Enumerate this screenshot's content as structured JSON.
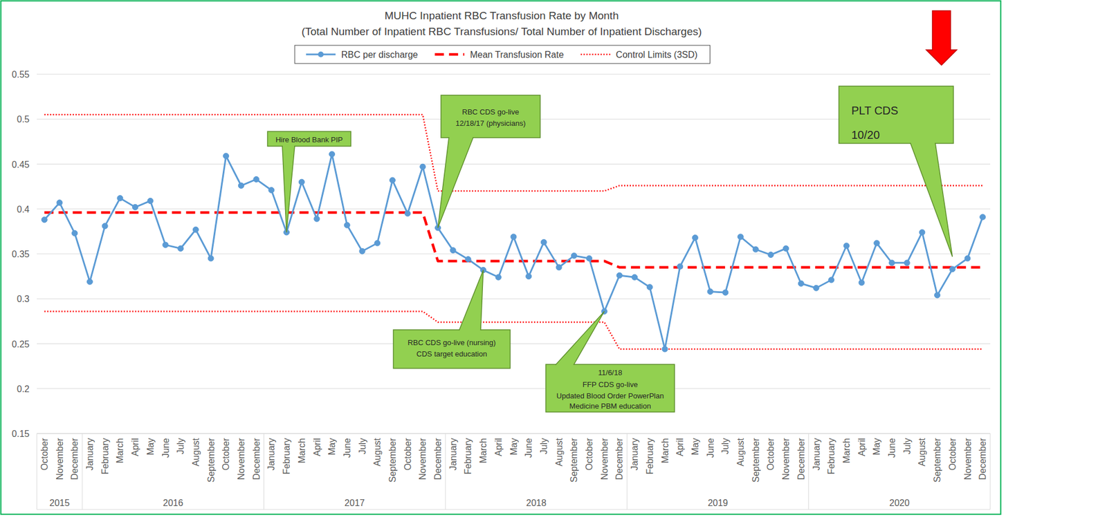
{
  "chart_data": {
    "type": "line",
    "title": "MUHC Inpatient RBC Transfusion Rate by Month",
    "subtitle": "(Total Number of Inpatient RBC Transfusions/ Total Number of Inpatient Discharges)",
    "categories": [
      "October",
      "November",
      "December",
      "January",
      "February",
      "March",
      "April",
      "May",
      "June",
      "July",
      "August",
      "September",
      "October",
      "November",
      "December",
      "January",
      "February",
      "March",
      "April",
      "May",
      "June",
      "July",
      "August",
      "September",
      "October",
      "November",
      "December",
      "January",
      "February",
      "March",
      "April",
      "May",
      "June",
      "July",
      "August",
      "September",
      "October",
      "November",
      "December",
      "January",
      "February",
      "March",
      "April",
      "May",
      "June",
      "July",
      "August",
      "September",
      "October",
      "November",
      "December",
      "January",
      "February",
      "March",
      "April",
      "May",
      "June",
      "July",
      "August",
      "September",
      "October",
      "November",
      "December"
    ],
    "category_groups": [
      {
        "label": "2015",
        "size": 3
      },
      {
        "label": "2016",
        "size": 12
      },
      {
        "label": "2017",
        "size": 12
      },
      {
        "label": "2018",
        "size": 12
      },
      {
        "label": "2019",
        "size": 12
      },
      {
        "label": "2020",
        "size": 12
      }
    ],
    "ylim": [
      0.15,
      0.55
    ],
    "yticks": [
      0.15,
      0.2,
      0.25,
      0.3,
      0.35,
      0.4,
      0.45,
      0.5,
      0.55
    ],
    "grid": true,
    "legend": "top",
    "series": [
      {
        "name": "RBC per discharge",
        "color": "#5b9bd5",
        "type": "line",
        "marker": "circle",
        "line_style": "solid",
        "values": [
          0.388,
          0.407,
          0.373,
          0.319,
          0.381,
          0.412,
          0.402,
          0.409,
          0.36,
          0.356,
          0.377,
          0.345,
          0.459,
          0.426,
          0.433,
          0.421,
          0.374,
          0.43,
          0.389,
          0.461,
          0.382,
          0.353,
          0.362,
          0.432,
          0.395,
          0.447,
          0.379,
          0.354,
          0.344,
          0.332,
          0.324,
          0.369,
          0.325,
          0.363,
          0.335,
          0.348,
          0.345,
          0.286,
          0.326,
          0.324,
          0.313,
          0.244,
          0.336,
          0.368,
          0.308,
          0.307,
          0.369,
          0.355,
          0.349,
          0.356,
          0.317,
          0.312,
          0.321,
          0.359,
          0.318,
          0.362,
          0.34,
          0.34,
          0.374,
          0.304,
          0.333,
          0.345,
          0.391
        ]
      },
      {
        "name": "Mean Transfusion Rate",
        "color": "#ff0000",
        "type": "line",
        "line_style": "dashed",
        "values": [
          0.396,
          0.396,
          0.396,
          0.396,
          0.396,
          0.396,
          0.396,
          0.396,
          0.396,
          0.396,
          0.396,
          0.396,
          0.396,
          0.396,
          0.396,
          0.396,
          0.396,
          0.396,
          0.396,
          0.396,
          0.396,
          0.396,
          0.396,
          0.396,
          0.396,
          0.396,
          0.342,
          0.342,
          0.342,
          0.342,
          0.342,
          0.342,
          0.342,
          0.342,
          0.342,
          0.342,
          0.342,
          0.342,
          0.335,
          0.335,
          0.335,
          0.335,
          0.335,
          0.335,
          0.335,
          0.335,
          0.335,
          0.335,
          0.335,
          0.335,
          0.335,
          0.335,
          0.335,
          0.335,
          0.335,
          0.335,
          0.335,
          0.335,
          0.335,
          0.335,
          0.335,
          0.335,
          0.335
        ]
      },
      {
        "name": "Control Limits (3SD)",
        "color": "#ff0000",
        "type": "line",
        "line_style": "dotted",
        "values": [
          0.505,
          0.505,
          0.505,
          0.505,
          0.505,
          0.505,
          0.505,
          0.505,
          0.505,
          0.505,
          0.505,
          0.505,
          0.505,
          0.505,
          0.505,
          0.505,
          0.505,
          0.505,
          0.505,
          0.505,
          0.505,
          0.505,
          0.505,
          0.505,
          0.505,
          0.505,
          0.42,
          0.42,
          0.42,
          0.42,
          0.42,
          0.42,
          0.42,
          0.42,
          0.42,
          0.42,
          0.42,
          0.42,
          0.426,
          0.426,
          0.426,
          0.426,
          0.426,
          0.426,
          0.426,
          0.426,
          0.426,
          0.426,
          0.426,
          0.426,
          0.426,
          0.426,
          0.426,
          0.426,
          0.426,
          0.426,
          0.426,
          0.426,
          0.426,
          0.426,
          0.426,
          0.426,
          0.426
        ]
      },
      {
        "name": "Control Limits (3SD)",
        "color": "#ff0000",
        "type": "line",
        "line_style": "dotted",
        "values": [
          0.286,
          0.286,
          0.286,
          0.286,
          0.286,
          0.286,
          0.286,
          0.286,
          0.286,
          0.286,
          0.286,
          0.286,
          0.286,
          0.286,
          0.286,
          0.286,
          0.286,
          0.286,
          0.286,
          0.286,
          0.286,
          0.286,
          0.286,
          0.286,
          0.286,
          0.286,
          0.274,
          0.274,
          0.274,
          0.274,
          0.274,
          0.274,
          0.274,
          0.274,
          0.274,
          0.274,
          0.274,
          0.274,
          0.244,
          0.244,
          0.244,
          0.244,
          0.244,
          0.244,
          0.244,
          0.244,
          0.244,
          0.244,
          0.244,
          0.244,
          0.244,
          0.244,
          0.244,
          0.244,
          0.244,
          0.244,
          0.244,
          0.244,
          0.244,
          0.244,
          0.244,
          0.244,
          0.244
        ]
      }
    ],
    "annotations": [
      {
        "lines": [
          "Hire Blood Bank PIP"
        ],
        "category_index": 16
      },
      {
        "lines": [
          "RBC CDS go-live",
          "12/18/17 (physicians)"
        ],
        "category_index": 26
      },
      {
        "lines": [
          "RBC CDS go-live (nursing)",
          "CDS target education"
        ],
        "category_index": 29
      },
      {
        "lines": [
          "11/6/18",
          "FFP CDS go-live",
          "Updated Blood Order PowerPlan",
          "Medicine PBM education"
        ],
        "category_index": 37
      },
      {
        "lines": [
          "PLT CDS",
          "10/20"
        ],
        "category_index": 60
      }
    ]
  }
}
